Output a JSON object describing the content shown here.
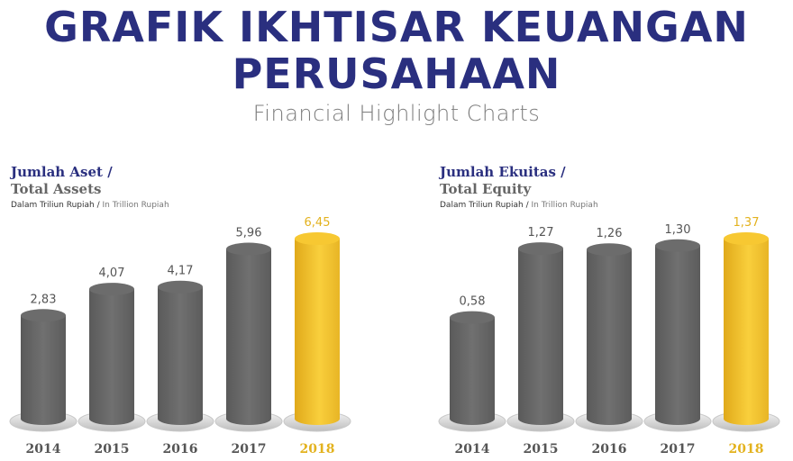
{
  "header": {
    "title_line1": "GRAFIK IKHTISAR KEUANGAN",
    "title_line2": "PERUSAHAAN",
    "subtitle": "Financial Highlight Charts"
  },
  "colors": {
    "navy": "#2a2f7f",
    "bar_gray": "#666666",
    "bar_gold": "#f2c12e",
    "gray_text": "#666666"
  },
  "chart_data": [
    {
      "type": "bar",
      "title": "Jumlah Aset /",
      "subtitle": "Total Assets",
      "unit_id": "Dalam Triliun Rupiah /",
      "unit_en": "In Trillion Rupiah",
      "categories": [
        "2014",
        "2015",
        "2016",
        "2017",
        "2018"
      ],
      "values": [
        2.83,
        4.07,
        4.17,
        5.96,
        6.45
      ],
      "value_labels": [
        "2,83",
        "4,07",
        "4,17",
        "5,96",
        "6,45"
      ],
      "highlight_index": 4
    },
    {
      "type": "bar",
      "title": "Jumlah Ekuitas  /",
      "subtitle": "Total Equity",
      "unit_id": "Dalam Triliun Rupiah /",
      "unit_en": "In Trillion Rupiah",
      "categories": [
        "2014",
        "2015",
        "2016",
        "2017",
        "2018"
      ],
      "values": [
        0.58,
        1.27,
        1.26,
        1.3,
        1.37
      ],
      "value_labels": [
        "0,58",
        "1,27",
        "1,26",
        "1,30",
        "1,37"
      ],
      "highlight_index": 4
    }
  ]
}
